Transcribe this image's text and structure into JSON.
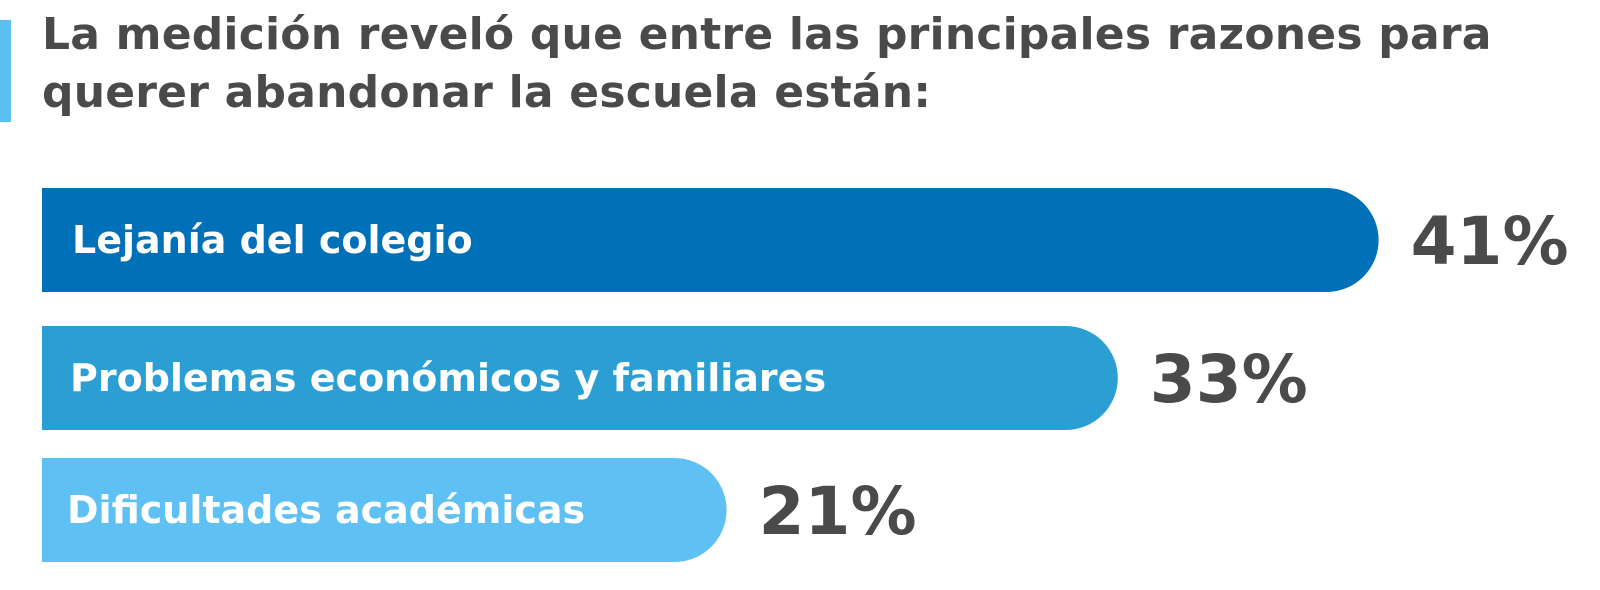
{
  "title_lines": [
    "La medición reveló que entre las principales razones para",
    "querer abandonar la escuela están:"
  ],
  "colors": {
    "accent": "#5bc0f0",
    "text": "#4a4a4a",
    "bar_label": "#ffffff"
  },
  "chart_data": {
    "type": "bar",
    "orientation": "horizontal",
    "categories": [
      "Lejanía del colegio",
      "Problemas económicos y familiares",
      "Dificultades académicas"
    ],
    "values": [
      41,
      33,
      21
    ],
    "value_labels": [
      "41%",
      "33%",
      "21%"
    ],
    "bar_colors": [
      "#0070b8",
      "#2b9ed3",
      "#5fc1f3"
    ],
    "title": "La medición reveló que entre las principales razones para querer abandonar la escuela están:",
    "xlabel": "",
    "ylabel": "",
    "grid": false,
    "legend": "none"
  }
}
